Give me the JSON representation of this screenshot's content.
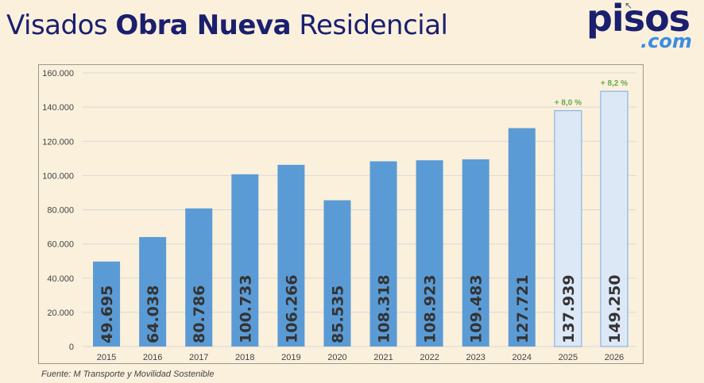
{
  "header": {
    "title_pre": "Visados ",
    "title_bold": "Obra Nueva",
    "title_post": " Residencial"
  },
  "logo": {
    "main": "pisos",
    "sub": ".com"
  },
  "source": "Fuente: M Transporte y Movilidad Sostenible",
  "chart_data": {
    "type": "bar",
    "title": "Visados Obra Nueva Residencial",
    "xlabel": "",
    "ylabel": "",
    "ylim": [
      0,
      160000
    ],
    "y_ticks": [
      0,
      20000,
      40000,
      60000,
      80000,
      100000,
      120000,
      140000,
      160000
    ],
    "y_tick_labels": [
      "0",
      "20.000",
      "40.000",
      "60.000",
      "80.000",
      "100.000",
      "120.000",
      "140.000",
      "160.000"
    ],
    "grid": true,
    "categories": [
      "2015",
      "2016",
      "2017",
      "2018",
      "2019",
      "2020",
      "2021",
      "2022",
      "2023",
      "2024",
      "2025",
      "2026"
    ],
    "values": [
      49695,
      64038,
      80786,
      100733,
      106266,
      85535,
      108318,
      108923,
      109483,
      127721,
      137939,
      149250
    ],
    "value_labels": [
      "49.695",
      "64.038",
      "80.786",
      "100.733",
      "106.266",
      "85.535",
      "108.318",
      "108.923",
      "109.483",
      "127.721",
      "137.939",
      "149.250"
    ],
    "forecast": [
      false,
      false,
      false,
      false,
      false,
      false,
      false,
      false,
      false,
      false,
      true,
      true
    ],
    "annotations": [
      "",
      "",
      "",
      "",
      "",
      "",
      "",
      "",
      "",
      "",
      "+ 8,0 %",
      "+ 8,2 %"
    ],
    "colors": {
      "actual": "#5b9bd5",
      "forecast_fill": "#dde8f7",
      "forecast_stroke": "#8db3e2",
      "annotation": "#6aa84f",
      "value_label": "#333333",
      "grid": "#d9d9d9"
    }
  }
}
